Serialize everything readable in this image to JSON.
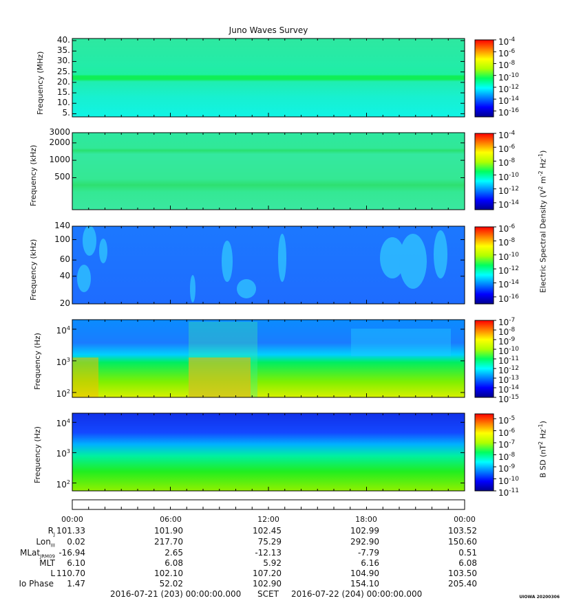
{
  "title": "Juno Waves Survey",
  "chart_data": [
    {
      "type": "heatmap",
      "panel": "HFR high",
      "ylabel": "Frequency (MHz)",
      "y_ticks": [
        "40.",
        "35.",
        "30.",
        "25.",
        "20.",
        "15.",
        "10.",
        "5."
      ],
      "y_scale": "linear",
      "ylim": [
        3.5,
        41
      ],
      "colorbar_ticks": [
        "10-4",
        "10-6",
        "10-8",
        "10-10",
        "10-12",
        "10-14",
        "10-16"
      ],
      "colorbar_range_exp": [
        -17,
        -4
      ],
      "features": [
        {
          "freq": 21,
          "level_exp": -11,
          "note": "narrow enhanced band"
        }
      ],
      "background_exp": -12
    },
    {
      "type": "heatmap",
      "panel": "HFR low",
      "ylabel": "Frequency (kHz)",
      "y_ticks": [
        "3000",
        "2000",
        "1000",
        "500"
      ],
      "y_scale": "log",
      "ylim": [
        140,
        3000
      ],
      "colorbar_ticks": [
        "10-4",
        "10-6",
        "10-8",
        "10-10",
        "10-12",
        "10-14"
      ],
      "colorbar_range_exp": [
        -15,
        -4
      ],
      "features": [
        {
          "freq": 1500,
          "level_exp": -11
        },
        {
          "freq": 400,
          "level_exp": -11
        }
      ],
      "background_exp": -12
    },
    {
      "type": "heatmap",
      "panel": "LFR high",
      "ylabel": "Frequency (kHz)",
      "y_ticks": [
        "140",
        "100",
        "60",
        "40",
        "20"
      ],
      "y_scale": "log",
      "ylim": [
        20,
        140
      ],
      "colorbar_ticks": [
        "10-6",
        "10-8",
        "10-10",
        "10-12",
        "10-14",
        "10-16"
      ],
      "colorbar_range_exp": [
        -17,
        -6
      ],
      "background_exp": -14
    },
    {
      "type": "heatmap",
      "panel": "LFR low E",
      "ylabel": "Frequency (Hz)",
      "y_ticks": [
        "10^4",
        "10^3",
        "10^2"
      ],
      "y_scale": "log",
      "ylim": [
        70,
        20000
      ],
      "colorbar_ticks": [
        "10-7",
        "10-8",
        "10-9",
        "10-10",
        "10-11",
        "10-12",
        "10-13",
        "10-14",
        "10-15"
      ],
      "colorbar_range_exp": [
        -15,
        -7
      ]
    },
    {
      "type": "heatmap",
      "panel": "LFR low B",
      "ylabel": "Frequency (Hz)",
      "y_ticks": [
        "10^4",
        "10^3",
        "10^2"
      ],
      "y_scale": "log",
      "ylim": [
        55,
        20000
      ],
      "colorbar_ticks": [
        "10-5",
        "10-6",
        "10-7",
        "10-8",
        "10-9",
        "10-10",
        "10-11"
      ],
      "colorbar_range_exp": [
        -11,
        -4.6
      ]
    }
  ],
  "colorbar_labels": {
    "electric": "Electric Spectral Density (V^2 m^-2 Hz^-1)",
    "magnetic": "B SD (nT^2 Hz^-1)"
  },
  "x_axis": {
    "ticks": [
      "00:00",
      "06:00",
      "12:00",
      "18:00",
      "00:00"
    ],
    "rows": [
      {
        "label": "RJ",
        "values": [
          "101.33",
          "101.90",
          "102.45",
          "102.99",
          "103.52"
        ]
      },
      {
        "label": "LonIII",
        "values": [
          "0.02",
          "217.70",
          "75.29",
          "292.90",
          "150.60"
        ]
      },
      {
        "label": "MLatJRM09",
        "values": [
          "-16.94",
          "2.65",
          "-12.13",
          "-7.79",
          "0.51"
        ]
      },
      {
        "label": "MLT",
        "values": [
          "6.10",
          "6.08",
          "5.92",
          "6.16",
          "6.08"
        ]
      },
      {
        "label": "L",
        "values": [
          "110.70",
          "102.10",
          "107.20",
          "104.90",
          "103.50"
        ]
      },
      {
        "label": "Io Phase",
        "values": [
          "1.47",
          "52.02",
          "102.90",
          "154.10",
          "205.40"
        ]
      }
    ],
    "start_label": "2016-07-21 (203) 00:00:00.000",
    "scet_label": "SCET",
    "end_label": "2016-07-22 (204) 00:00:00.000"
  },
  "stamp": "UIOWA 20200306"
}
